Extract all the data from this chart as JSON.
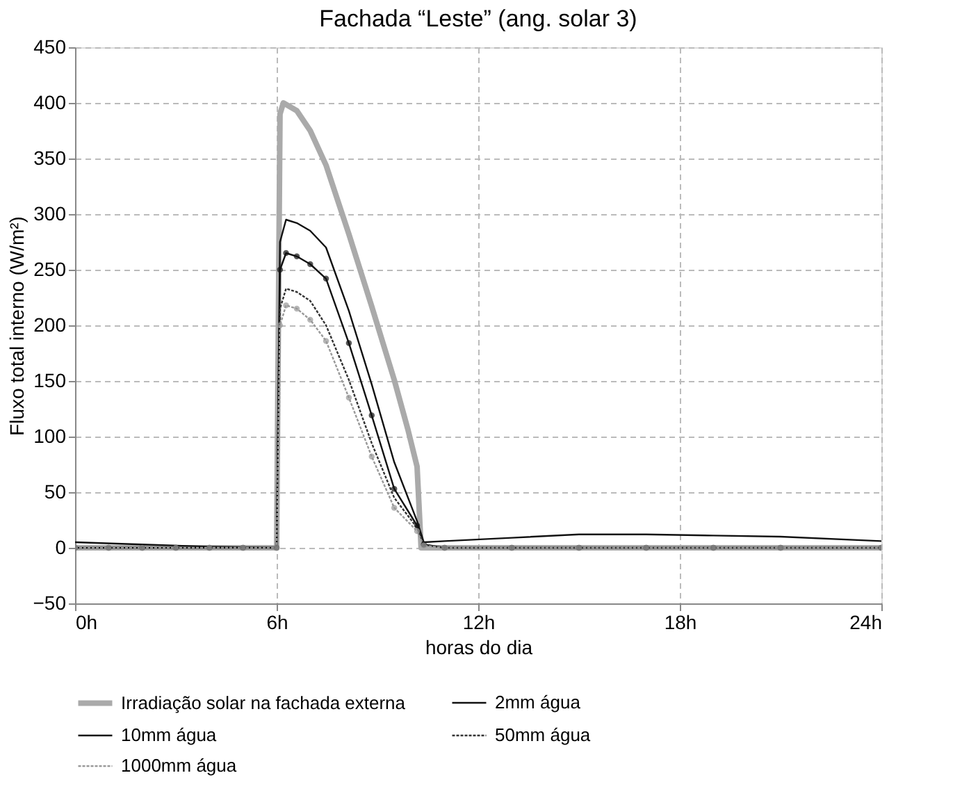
{
  "chart_data": {
    "type": "line",
    "title": "Fachada “Leste” (ang. solar 3)",
    "xlabel": "horas do dia",
    "ylabel": "Fluxo total interno (W/m²)",
    "xlim": [
      0,
      24
    ],
    "xticks": [
      {
        "value": 0,
        "label": "0h"
      },
      {
        "value": 6,
        "label": "6h"
      },
      {
        "value": 12,
        "label": "12h"
      },
      {
        "value": 18,
        "label": "18h"
      },
      {
        "value": 24,
        "label": "24h"
      }
    ],
    "ylim": [
      -50,
      450
    ],
    "yticks": [
      -50,
      0,
      50,
      100,
      150,
      200,
      250,
      300,
      350,
      400,
      450
    ],
    "grid": true,
    "legend": "bottom",
    "series": [
      {
        "name": "Irradiação solar na fachada externa",
        "color": "#aaaaaa",
        "line_style": "solid",
        "marker": "none",
        "x": [
          0,
          2,
          4,
          6.0,
          6.1,
          6.2,
          6.6,
          7.0,
          7.47,
          8.15,
          8.83,
          9.5,
          9.91,
          10.18,
          10.3,
          11,
          14,
          18,
          21,
          24
        ],
        "values": [
          0,
          0,
          0,
          0,
          390,
          400,
          393,
          375,
          344,
          282,
          217,
          151,
          106,
          73,
          0,
          0,
          0,
          0,
          0,
          0
        ]
      },
      {
        "name": "2mm  água",
        "color": "#111111",
        "line_style": "solid",
        "marker": "none",
        "x": [
          0,
          2,
          4,
          6.0,
          6.1,
          6.28,
          6.6,
          7.0,
          7.47,
          8.15,
          8.83,
          9.5,
          10.18,
          10.38,
          11,
          13,
          15,
          17,
          19,
          21,
          24
        ],
        "values": [
          5,
          3,
          1,
          0,
          275,
          295,
          292,
          285,
          270,
          213,
          147,
          77,
          24,
          5,
          6,
          9,
          12,
          12,
          11,
          10,
          6
        ]
      },
      {
        "name": "10mm  água",
        "color": "#111111",
        "line_style": "solid",
        "marker": "circle",
        "x": [
          0,
          1,
          2,
          3,
          4,
          5,
          6.0,
          6.1,
          6.28,
          6.6,
          7.0,
          7.47,
          8.15,
          8.83,
          9.5,
          10.18,
          10.38,
          11,
          13,
          15,
          17,
          19,
          21,
          24
        ],
        "values": [
          0,
          0,
          0,
          0,
          0,
          0,
          0,
          250,
          265,
          262,
          255,
          242,
          184,
          119,
          53,
          20,
          3,
          0,
          0,
          0,
          0,
          0,
          0,
          0
        ]
      },
      {
        "name": "50mm  água",
        "color": "#333333",
        "line_style": "dotted",
        "marker": "none",
        "x": [
          0,
          2,
          4,
          6.0,
          6.1,
          6.28,
          6.6,
          7.0,
          7.47,
          8.15,
          8.83,
          9.5,
          10.18,
          10.38,
          11,
          14,
          18,
          21,
          24
        ],
        "values": [
          0,
          0,
          0,
          0,
          215,
          233,
          230,
          222,
          200,
          151,
          94,
          45,
          18,
          3,
          0,
          0,
          0,
          0,
          0
        ]
      },
      {
        "name": "1000mm  água",
        "color": "#999999",
        "line_style": "dotted",
        "marker": "circle",
        "x": [
          0,
          1,
          2,
          3,
          4,
          5,
          6.0,
          6.1,
          6.28,
          6.6,
          7.0,
          7.47,
          8.15,
          8.83,
          9.5,
          10.18,
          10.38,
          11,
          13,
          15,
          17,
          19,
          21,
          24
        ],
        "values": [
          0,
          0,
          0,
          0,
          0,
          0,
          0,
          200,
          218,
          215,
          205,
          186,
          135,
          82,
          36,
          15,
          2,
          0,
          0,
          0,
          0,
          0,
          0,
          0
        ]
      }
    ]
  }
}
